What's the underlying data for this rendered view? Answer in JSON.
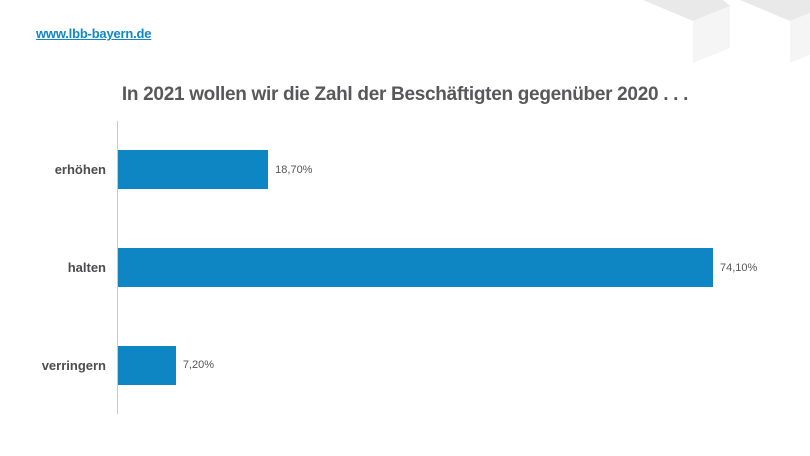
{
  "header": {
    "link": "www.lbb-bayern.de"
  },
  "logo": {
    "name": "lbb-cubes-watermark",
    "face_top_color": "#e9e9e9",
    "face_front_color": "#f5f5f5"
  },
  "chart_data": {
    "type": "bar",
    "orientation": "horizontal",
    "title": "In 2021 wollen wir die Zahl der Beschäftigten gegenüber 2020 . . .",
    "categories": [
      "erhöhen",
      "halten",
      "verringern"
    ],
    "values": [
      18.7,
      74.1,
      7.2
    ],
    "value_labels": [
      "18,70%",
      "74,10%",
      "7,20%"
    ],
    "unit": "%",
    "xlim": [
      0,
      100
    ],
    "grid": false,
    "legend": false,
    "bar_color": "#0e86c4",
    "axis_color": "#c9c9c9"
  },
  "colors": {
    "link_blue": "#1187c5",
    "title_gray": "#58585a",
    "category_gray": "#4c4c4e",
    "value_gray": "#555555",
    "background": "#ffffff"
  }
}
